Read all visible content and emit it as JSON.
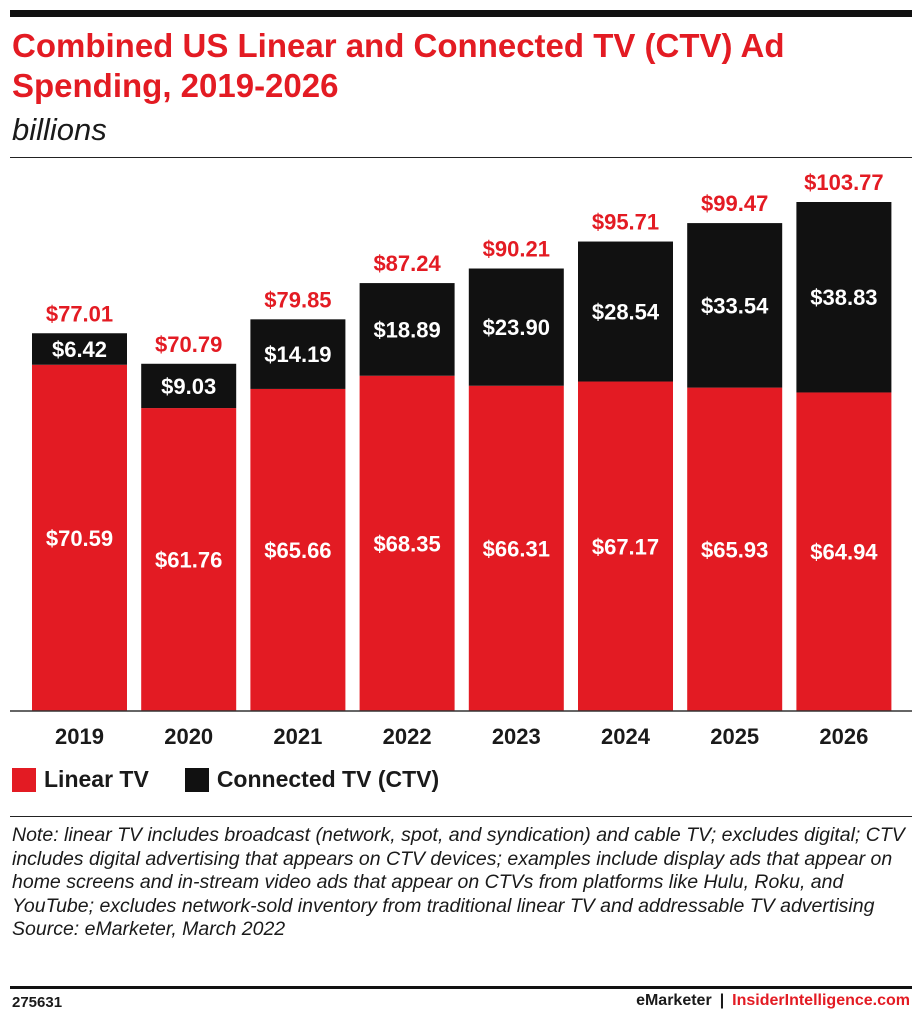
{
  "header": {
    "title": "Combined US Linear and Connected TV (CTV) Ad Spending, 2019-2026",
    "subtitle": "billions"
  },
  "legend": {
    "linear_label": "Linear TV",
    "ctv_label": "Connected TV (CTV)"
  },
  "colors": {
    "linear": "#e31b23",
    "ctv": "#111111",
    "total_label": "#e31b23"
  },
  "chart_data": {
    "type": "bar",
    "stacked": true,
    "title": "Combined US Linear and Connected TV (CTV) Ad Spending, 2019-2026",
    "subtitle": "billions",
    "categories": [
      "2019",
      "2020",
      "2021",
      "2022",
      "2023",
      "2024",
      "2025",
      "2026"
    ],
    "series": [
      {
        "name": "Linear TV",
        "values": [
          70.59,
          61.76,
          65.66,
          68.35,
          66.31,
          67.17,
          65.93,
          64.94
        ],
        "labels": [
          "$70.59",
          "$61.76",
          "$65.66",
          "$68.35",
          "$66.31",
          "$67.17",
          "$65.93",
          "$64.94"
        ]
      },
      {
        "name": "Connected TV (CTV)",
        "values": [
          6.42,
          9.03,
          14.19,
          18.89,
          23.9,
          28.54,
          33.54,
          38.83
        ],
        "labels": [
          "$6.42",
          "$9.03",
          "$14.19",
          "$18.89",
          "$23.90",
          "$28.54",
          "$33.54",
          "$38.83"
        ]
      }
    ],
    "totals": [
      77.01,
      70.79,
      79.85,
      87.24,
      90.21,
      95.71,
      99.47,
      103.77
    ],
    "total_labels": [
      "$77.01",
      "$70.79",
      "$79.85",
      "$87.24",
      "$90.21",
      "$95.71",
      "$99.47",
      "$103.77"
    ],
    "ylim": [
      0,
      103.77
    ],
    "grid": false,
    "legend_position": "bottom-left"
  },
  "note": {
    "text": "Note: linear TV includes broadcast (network, spot, and syndication) and cable TV; excludes digital; CTV includes digital advertising that appears on CTV devices; examples include display ads that appear on home screens and in-stream video ads that appear on CTVs from platforms like Hulu, Roku, and YouTube; excludes network-sold inventory from traditional linear TV and addressable TV advertising",
    "source": "Source: eMarketer, March 2022"
  },
  "footer": {
    "chart_id": "275631",
    "brand1": "eMarketer",
    "separator": "|",
    "brand2": "InsiderIntelligence.com"
  }
}
